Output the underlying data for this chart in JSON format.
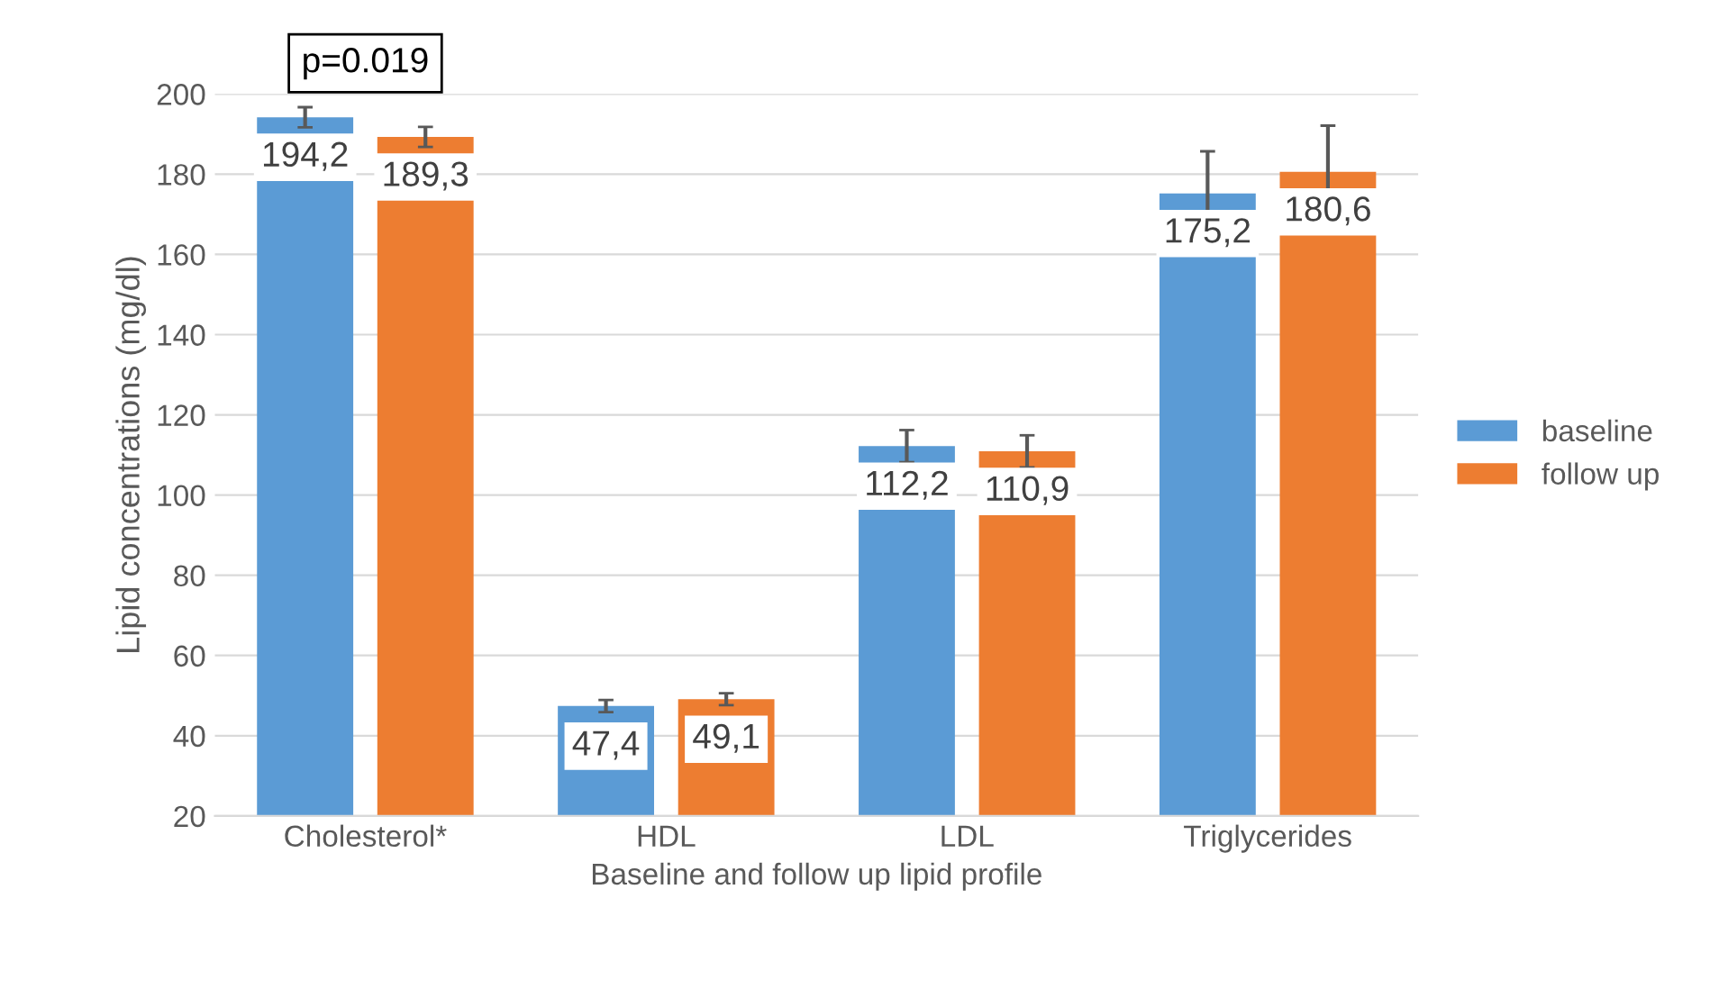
{
  "chart_data": {
    "type": "bar",
    "xlabel": "Baseline and follow up lipid profile",
    "ylabel": "Lipid concentrations (mg/dl)",
    "categories": [
      "Cholesterol*",
      "HDL",
      "LDL",
      "Triglycerides"
    ],
    "series": [
      {
        "name": "baseline",
        "color": "#5b9bd5",
        "values": [
          194.2,
          47.4,
          112.2,
          175.2
        ],
        "errors": [
          2.5,
          1.5,
          4,
          10.5
        ],
        "value_labels": [
          "194,2",
          "47,4",
          "112,2",
          "175,2"
        ]
      },
      {
        "name": "follow up",
        "color": "#ed7d31",
        "values": [
          189.3,
          49.1,
          110.9,
          180.6
        ],
        "errors": [
          2.5,
          1.5,
          4,
          11.5
        ],
        "value_labels": [
          "189,3",
          "49,1",
          "110,9",
          "180,6"
        ]
      }
    ],
    "ylim": [
      20,
      200
    ],
    "yticks": [
      20,
      40,
      60,
      80,
      100,
      120,
      140,
      160,
      180,
      200
    ],
    "grid": "y",
    "legend": "right",
    "annotations": [
      "p=0.019"
    ]
  }
}
